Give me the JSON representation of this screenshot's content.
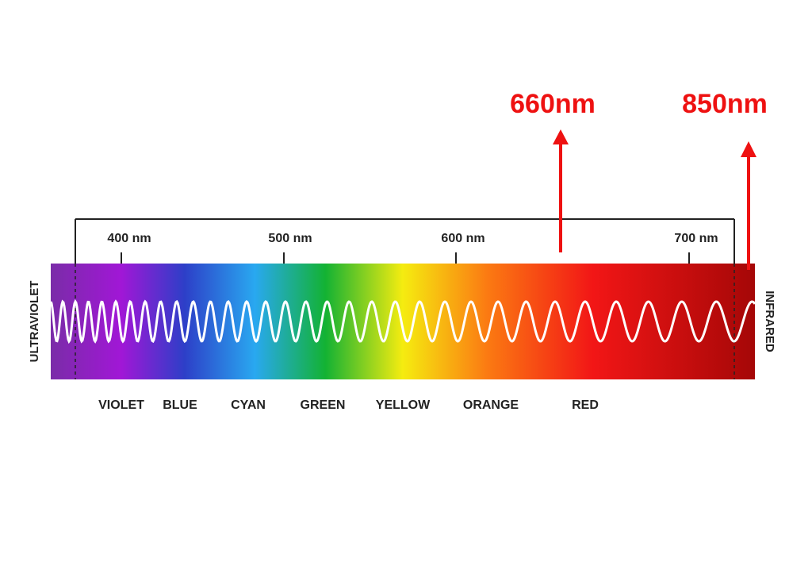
{
  "spectrum": {
    "left_label": "ULTRAVIOLET",
    "right_label": "INFRARED",
    "scale_ticks": [
      "400 nm",
      "500 nm",
      "600 nm",
      "700 nm"
    ],
    "color_names": [
      "VIOLET",
      "BLUE",
      "CYAN",
      "GREEN",
      "YELLOW",
      "ORANGE",
      "RED"
    ]
  },
  "markers": [
    {
      "label": "660nm",
      "color": "#ee1111"
    },
    {
      "label": "850nm",
      "color": "#ee1111"
    }
  ],
  "colors": {
    "violet": "#7a1fb3",
    "blue": "#2d3fc8",
    "cyan": "#29a8f0",
    "green": "#13b233",
    "yellow": "#f5ec10",
    "orange": "#fb7a12",
    "red": "#f21616",
    "deep_red": "#a50707",
    "wave": "#ffffff"
  }
}
